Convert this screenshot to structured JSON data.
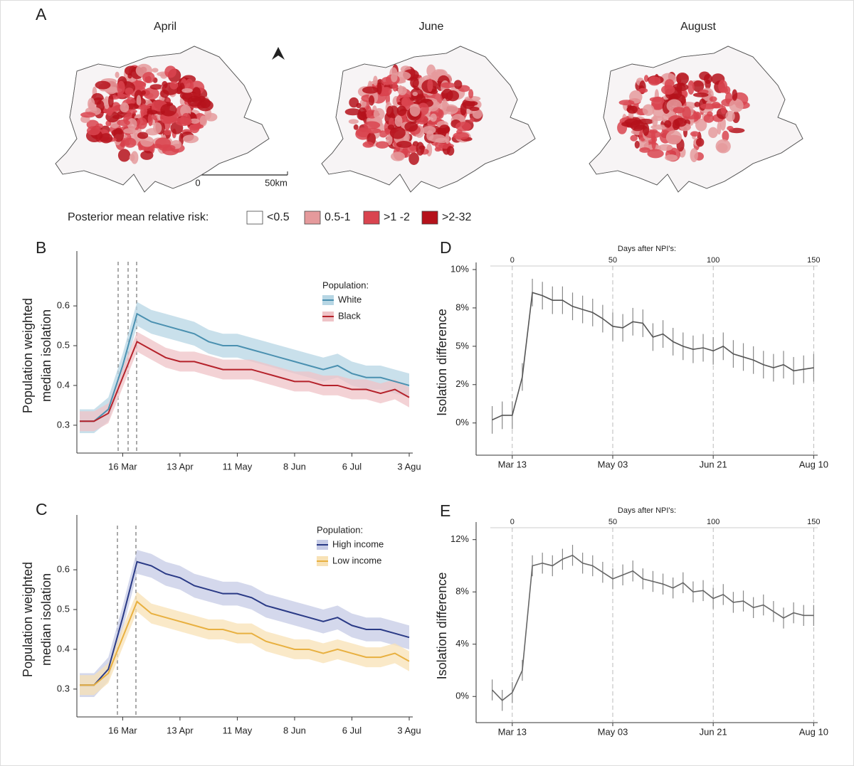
{
  "maps": {
    "panel": "A",
    "titles": [
      "April",
      "June",
      "August"
    ],
    "scale_labels": [
      "0",
      "50km"
    ],
    "legend_title": "Posterior mean relative risk:",
    "legend": [
      {
        "label": "<0.5",
        "color": "#ffffff"
      },
      {
        "label": "0.5-1",
        "color": "#e59a9c"
      },
      {
        "label": ">1 -2",
        "color": "#d9444f"
      },
      {
        "label": ">2-32",
        "color": "#b5121b"
      }
    ]
  },
  "chart_data": [
    {
      "type": "line",
      "panel": "B",
      "ylabel": [
        "Population weighted",
        "median isolation"
      ],
      "categories": [
        null,
        null,
        null,
        "16 Mar",
        null,
        null,
        null,
        "13 Apr",
        null,
        null,
        null,
        "11 May",
        null,
        null,
        null,
        "8 Jun",
        null,
        null,
        null,
        "6 Jul",
        null,
        null,
        null,
        "3 Agu"
      ],
      "ylim": [
        0.23,
        0.72
      ],
      "yticks": [
        0.3,
        0.4,
        0.5,
        0.6
      ],
      "legend_title": "Population:",
      "series": [
        {
          "name": "White",
          "color": "#4a90b0",
          "band_color": "#b7d6e4",
          "band": 0.03,
          "values": [
            0.31,
            0.31,
            0.34,
            0.45,
            0.58,
            0.56,
            0.55,
            0.54,
            0.53,
            0.51,
            0.5,
            0.5,
            0.49,
            0.48,
            0.47,
            0.46,
            0.45,
            0.44,
            0.45,
            0.43,
            0.42,
            0.42,
            0.41,
            0.4
          ]
        },
        {
          "name": "Black",
          "color": "#b5222b",
          "band_color": "#efc3c7",
          "band": 0.025,
          "values": [
            0.31,
            0.31,
            0.33,
            0.42,
            0.51,
            0.49,
            0.47,
            0.46,
            0.46,
            0.45,
            0.44,
            0.44,
            0.44,
            0.43,
            0.42,
            0.41,
            0.41,
            0.4,
            0.4,
            0.39,
            0.39,
            0.38,
            0.39,
            0.37
          ]
        }
      ]
    },
    {
      "type": "line",
      "panel": "C",
      "ylabel": [
        "Population weighted",
        "median isolation"
      ],
      "categories": [
        null,
        null,
        null,
        "16 Mar",
        null,
        null,
        null,
        "13 Apr",
        null,
        null,
        null,
        "11 May",
        null,
        null,
        null,
        "8 Jun",
        null,
        null,
        null,
        "6 Jul",
        null,
        null,
        null,
        "3 Agu"
      ],
      "ylim": [
        0.23,
        0.72
      ],
      "yticks": [
        0.3,
        0.4,
        0.5,
        0.6
      ],
      "legend_title": "Population:",
      "series": [
        {
          "name": "High income",
          "color": "#2a3a86",
          "band_color": "#c6cbe6",
          "band": 0.03,
          "values": [
            0.31,
            0.31,
            0.35,
            0.48,
            0.62,
            0.61,
            0.59,
            0.58,
            0.56,
            0.55,
            0.54,
            0.54,
            0.53,
            0.51,
            0.5,
            0.49,
            0.48,
            0.47,
            0.48,
            0.46,
            0.45,
            0.45,
            0.44,
            0.43
          ]
        },
        {
          "name": "Low income",
          "color": "#e8b040",
          "band_color": "#f8e2b6",
          "band": 0.025,
          "values": [
            0.31,
            0.31,
            0.34,
            0.43,
            0.52,
            0.49,
            0.48,
            0.47,
            0.46,
            0.45,
            0.45,
            0.44,
            0.44,
            0.42,
            0.41,
            0.4,
            0.4,
            0.39,
            0.4,
            0.39,
            0.38,
            0.38,
            0.39,
            0.37
          ]
        }
      ]
    },
    {
      "type": "errorline",
      "panel": "D",
      "ylabel": [
        "Isolation difference"
      ],
      "x2label": "Days after NPI's:",
      "x": [
        -10,
        -5,
        0,
        5,
        10,
        15,
        20,
        25,
        30,
        35,
        40,
        45,
        50,
        55,
        60,
        65,
        70,
        75,
        80,
        85,
        90,
        95,
        100,
        105,
        110,
        115,
        120,
        125,
        130,
        135,
        140,
        145,
        150
      ],
      "values": [
        0.2,
        0.5,
        0.5,
        3,
        8.5,
        8.3,
        8,
        8,
        7.6,
        7.4,
        7.2,
        6.8,
        6.3,
        6.2,
        6.6,
        6.5,
        5.6,
        5.8,
        5.3,
        5,
        4.8,
        4.9,
        4.7,
        5,
        4.5,
        4.3,
        4.1,
        3.8,
        3.6,
        3.8,
        3.4,
        3.5,
        3.6
      ],
      "error": 0.9,
      "color": "#555555",
      "xlim": [
        -18,
        152
      ],
      "xticks": [
        {
          "value": 0,
          "label": "Mar 13"
        },
        {
          "value": 50,
          "label": "May 03"
        },
        {
          "value": 100,
          "label": "Jun 21"
        },
        {
          "value": 150,
          "label": "Aug 10"
        }
      ],
      "x2ticks": [
        0,
        50,
        100,
        150
      ],
      "grid": true,
      "ylim": [
        -2.1,
        10
      ],
      "yticks": [
        {
          "value": 0,
          "label": "0%"
        },
        {
          "value": 2.5,
          "label": "2%"
        },
        {
          "value": 5,
          "label": "5%"
        },
        {
          "value": 7.5,
          "label": "8%"
        },
        {
          "value": 10,
          "label": "10%"
        }
      ]
    },
    {
      "type": "errorline",
      "panel": "E",
      "ylabel": [
        "Isolation difference"
      ],
      "x2label": "Days after NPI's:",
      "x": [
        -10,
        -5,
        0,
        5,
        10,
        15,
        20,
        25,
        30,
        35,
        40,
        45,
        50,
        55,
        60,
        65,
        70,
        75,
        80,
        85,
        90,
        95,
        100,
        105,
        110,
        115,
        120,
        125,
        130,
        135,
        140,
        145,
        150
      ],
      "values": [
        0.5,
        -0.3,
        0.3,
        2,
        10,
        10.2,
        10,
        10.5,
        10.8,
        10.2,
        10,
        9.5,
        9,
        9.3,
        9.6,
        9,
        8.8,
        8.6,
        8.3,
        8.7,
        8,
        8.1,
        7.5,
        7.8,
        7.2,
        7.3,
        6.8,
        7,
        6.5,
        6,
        6.4,
        6.2,
        6.2
      ],
      "error": 0.8,
      "color": "#666666",
      "xlim": [
        -18,
        152
      ],
      "xticks": [
        {
          "value": 0,
          "label": "Mar 13"
        },
        {
          "value": 50,
          "label": "May 03"
        },
        {
          "value": 100,
          "label": "Jun 21"
        },
        {
          "value": 150,
          "label": "Aug 10"
        }
      ],
      "x2ticks": [
        0,
        50,
        100,
        150
      ],
      "grid": true,
      "ylim": [
        -2,
        12.8
      ],
      "yticks": [
        {
          "value": 0,
          "label": "0%"
        },
        {
          "value": 4,
          "label": "4%"
        },
        {
          "value": 8,
          "label": "8%"
        },
        {
          "value": 12,
          "label": "12%"
        }
      ]
    }
  ]
}
